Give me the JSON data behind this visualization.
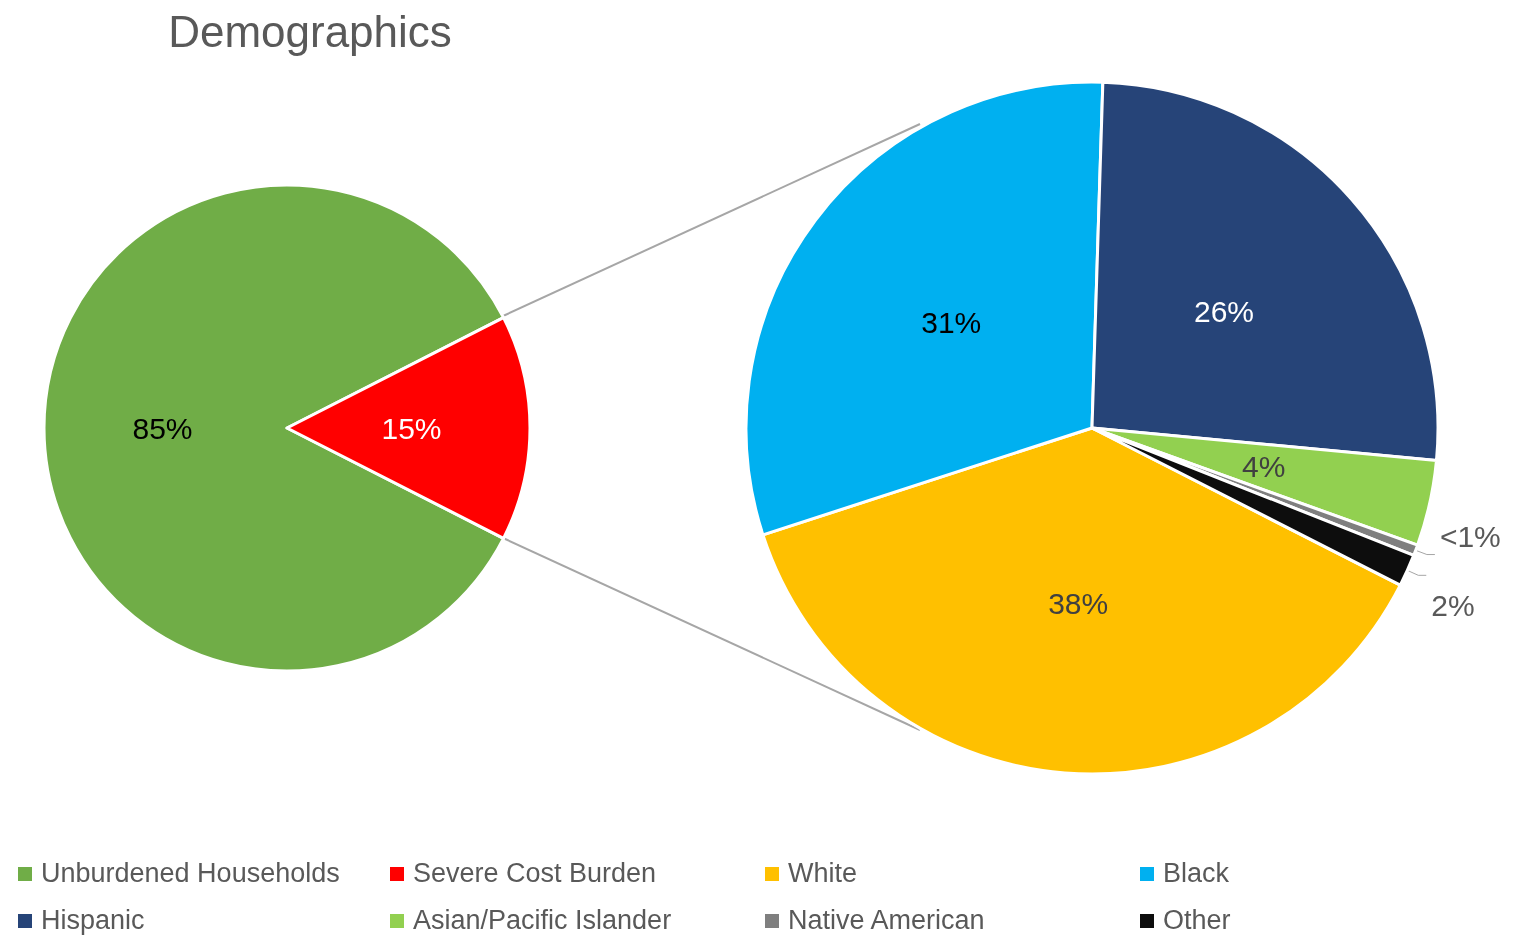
{
  "chart_data": [
    {
      "type": "pie",
      "title": "Demographics",
      "categories": [
        "Unburdened Households",
        "Severe Cost Burden"
      ],
      "values": [
        85,
        15
      ],
      "colors": [
        "#70ad47",
        "#ff0000"
      ],
      "value_labels": [
        "85%",
        "15%"
      ],
      "legend": "bottom"
    },
    {
      "type": "pie",
      "categories": [
        "White",
        "Black",
        "Hispanic",
        "Asian/Pacific Islander",
        "Native American",
        "Other"
      ],
      "values": [
        37.5,
        30.5,
        26,
        4,
        0.5,
        1.5
      ],
      "colors": [
        "#ffc000",
        "#00b0f0",
        "#264478",
        "#92d050",
        "#7f7f7f",
        "#0d0d0d"
      ],
      "value_labels": [
        "38%",
        "31%",
        "26%",
        "4%",
        "<1%",
        "2%"
      ],
      "legend": "bottom"
    }
  ]
}
